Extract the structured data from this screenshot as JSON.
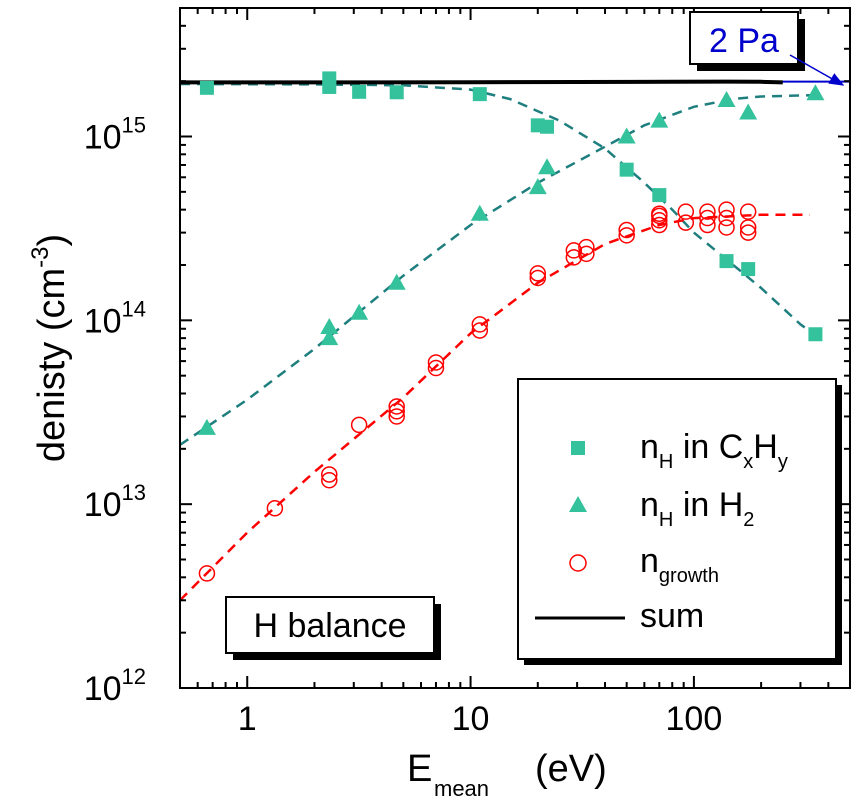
{
  "chart_data": {
    "type": "scatter",
    "x_scale": "log",
    "y_scale": "log",
    "xlim": [
      0.5,
      500
    ],
    "ylim": [
      1000000000000.0,
      5000000000000000.0
    ],
    "xlabel": {
      "main": "E",
      "sub": "mean",
      "unit": "(eV)"
    },
    "ylabel": {
      "main": "denisty (cm",
      "sup": "-3",
      "close": ")"
    },
    "x_ticks": [
      {
        "value": 1,
        "label": "1"
      },
      {
        "value": 10,
        "label": "10"
      },
      {
        "value": 100,
        "label": "100"
      }
    ],
    "y_ticks": [
      {
        "value": 1000000000000.0,
        "base": "10",
        "exp": "12"
      },
      {
        "value": 10000000000000.0,
        "base": "10",
        "exp": "13"
      },
      {
        "value": 100000000000000.0,
        "base": "10",
        "exp": "14"
      },
      {
        "value": 1000000000000000.0,
        "base": "10",
        "exp": "15"
      }
    ],
    "grid": false,
    "legend_position": "bottom-right",
    "series": [
      {
        "id": "nH_CxHy",
        "legend": {
          "main": "n",
          "sub1": "H",
          "mid": " in C",
          "sub2": "x",
          "mid2": "H",
          "sub3": "y"
        },
        "marker": "square",
        "color": "#33c29c",
        "points": [
          [
            0.66,
            1840000000000000.0
          ],
          [
            2.33,
            2070000000000000.0
          ],
          [
            2.33,
            1860000000000000.0
          ],
          [
            3.17,
            1750000000000000.0
          ],
          [
            4.67,
            1740000000000000.0
          ],
          [
            11.0,
            1700000000000000.0
          ],
          [
            20.0,
            1150000000000000.0
          ],
          [
            22.0,
            1130000000000000.0
          ],
          [
            50.0,
            660000000000000.0
          ],
          [
            70.0,
            480000000000000.0
          ],
          [
            140.0,
            210000000000000.0
          ],
          [
            175.0,
            190000000000000.0
          ],
          [
            350.0,
            84000000000000.0
          ]
        ]
      },
      {
        "id": "nH_H2",
        "legend": {
          "main": "n",
          "sub1": "H",
          "mid": " in H",
          "sub2": "2"
        },
        "marker": "triangle",
        "color": "#33c29c",
        "points": [
          [
            0.66,
            26000000000000.0
          ],
          [
            2.33,
            92000000000000.0
          ],
          [
            2.33,
            80000000000000.0
          ],
          [
            3.17,
            110000000000000.0
          ],
          [
            4.67,
            160000000000000.0
          ],
          [
            11.0,
            380000000000000.0
          ],
          [
            20.0,
            530000000000000.0
          ],
          [
            22.0,
            680000000000000.0
          ],
          [
            50.0,
            1000000000000000.0
          ],
          [
            70.0,
            1220000000000000.0
          ],
          [
            140.0,
            1580000000000000.0
          ],
          [
            175.0,
            1350000000000000.0
          ],
          [
            350.0,
            1720000000000000.0
          ]
        ]
      },
      {
        "id": "ngrowth",
        "legend": {
          "main": "n",
          "sub1": "growth"
        },
        "marker": "open-circle",
        "color": "#ff0000",
        "points": [
          [
            0.66,
            4200000000000.0
          ],
          [
            1.33,
            9500000000000.0
          ],
          [
            2.33,
            13500000000000.0
          ],
          [
            2.33,
            14500000000000.0
          ],
          [
            3.17,
            27000000000000.0
          ],
          [
            4.67,
            30000000000000.0
          ],
          [
            4.67,
            32000000000000.0
          ],
          [
            4.67,
            34000000000000.0
          ],
          [
            7.0,
            55000000000000.0
          ],
          [
            7.0,
            59000000000000.0
          ],
          [
            11.0,
            88000000000000.0
          ],
          [
            11.0,
            95000000000000.0
          ],
          [
            20.0,
            170000000000000.0
          ],
          [
            20.0,
            180000000000000.0
          ],
          [
            29.0,
            220000000000000.0
          ],
          [
            29.0,
            240000000000000.0
          ],
          [
            33.0,
            230000000000000.0
          ],
          [
            33.0,
            250000000000000.0
          ],
          [
            50.0,
            290000000000000.0
          ],
          [
            50.0,
            310000000000000.0
          ],
          [
            70.0,
            330000000000000.0
          ],
          [
            70.0,
            350000000000000.0
          ],
          [
            70.0,
            370000000000000.0
          ],
          [
            70.0,
            380000000000000.0
          ],
          [
            92.0,
            340000000000000.0
          ],
          [
            92.0,
            390000000000000.0
          ],
          [
            115.0,
            330000000000000.0
          ],
          [
            115.0,
            360000000000000.0
          ],
          [
            115.0,
            390000000000000.0
          ],
          [
            140.0,
            320000000000000.0
          ],
          [
            140.0,
            360000000000000.0
          ],
          [
            140.0,
            400000000000000.0
          ],
          [
            175.0,
            300000000000000.0
          ],
          [
            175.0,
            320000000000000.0
          ],
          [
            175.0,
            390000000000000.0
          ]
        ]
      },
      {
        "id": "sum",
        "legend": {
          "main": "sum"
        },
        "marker": "line",
        "color": "#000000",
        "points": [
          [
            0.5,
            1970000000000000.0
          ],
          [
            2,
            1970000000000000.0
          ],
          [
            10,
            1975000000000000.0
          ],
          [
            30,
            1980000000000000.0
          ],
          [
            80,
            1985000000000000.0
          ],
          [
            140,
            1990000000000000.0
          ],
          [
            200,
            1985000000000000.0
          ],
          [
            250,
            1970000000000000.0
          ]
        ]
      }
    ],
    "fit_curves": [
      {
        "id": "fit_CxHy",
        "style": "dashed",
        "color": "#1f7f7f",
        "points": [
          [
            0.5,
            1930000000000000.0
          ],
          [
            2,
            1920000000000000.0
          ],
          [
            5,
            1900000000000000.0
          ],
          [
            10,
            1800000000000000.0
          ],
          [
            15,
            1600000000000000.0
          ],
          [
            25,
            1220000000000000.0
          ],
          [
            40,
            860000000000000.0
          ],
          [
            60,
            560000000000000.0
          ],
          [
            80,
            400000000000000.0
          ],
          [
            100,
            300000000000000.0
          ],
          [
            150,
            200000000000000.0
          ],
          [
            200,
            150000000000000.0
          ],
          [
            300,
            95000000000000.0
          ],
          [
            350,
            83000000000000.0
          ]
        ]
      },
      {
        "id": "fit_H2",
        "style": "dashed",
        "color": "#1f7f7f",
        "points": [
          [
            0.5,
            21000000000000.0
          ],
          [
            1,
            37000000000000.0
          ],
          [
            2,
            70000000000000.0
          ],
          [
            5,
            175000000000000.0
          ],
          [
            10,
            330000000000000.0
          ],
          [
            20,
            560000000000000.0
          ],
          [
            40,
            880000000000000.0
          ],
          [
            60,
            1150000000000000.0
          ],
          [
            100,
            1450000000000000.0
          ],
          [
            150,
            1600000000000000.0
          ],
          [
            200,
            1650000000000000.0
          ],
          [
            350,
            1680000000000000.0
          ]
        ]
      },
      {
        "id": "fit_growth",
        "style": "dashed",
        "color": "#ff0000",
        "points": [
          [
            0.5,
            3000000000000.0
          ],
          [
            1,
            7000000000000.0
          ],
          [
            2,
            15000000000000.0
          ],
          [
            5,
            38000000000000.0
          ],
          [
            10,
            85000000000000.0
          ],
          [
            20,
            160000000000000.0
          ],
          [
            40,
            260000000000000.0
          ],
          [
            70,
            330000000000000.0
          ],
          [
            100,
            360000000000000.0
          ],
          [
            200,
            375000000000000.0
          ],
          [
            330,
            375000000000000.0
          ]
        ]
      },
      {
        "id": "pa_line",
        "style": "solid",
        "color": "#0000cc",
        "points": [
          [
            0.5,
            1990000000000000.0
          ],
          [
            500,
            1990000000000000.0
          ]
        ]
      }
    ],
    "annotations": {
      "pressure_label": "2 Pa",
      "balance_label": "H balance"
    }
  }
}
